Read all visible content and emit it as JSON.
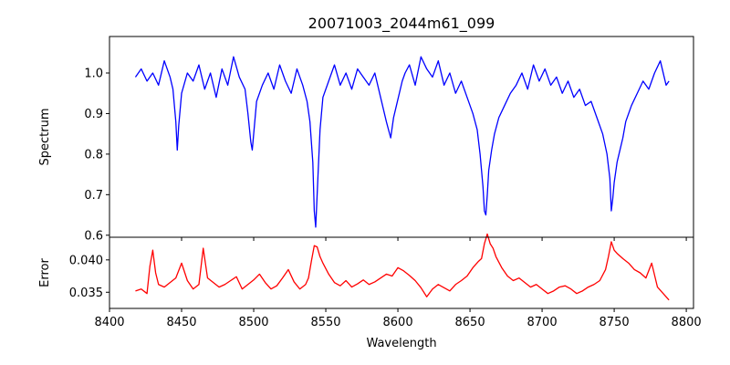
{
  "chart_data": [
    {
      "type": "line",
      "title": "20071003_2044m61_099",
      "xlabel": "",
      "ylabel": "Spectrum",
      "xlim": [
        8400,
        8805
      ],
      "ylim": [
        0.595,
        1.09
      ],
      "xticks": [
        8400,
        8450,
        8500,
        8550,
        8600,
        8650,
        8700,
        8750,
        8800
      ],
      "yticks": [
        0.6,
        0.7,
        0.8,
        0.9,
        1.0
      ],
      "ytick_labels": [
        "0.6",
        "0.7",
        "0.8",
        "0.9",
        "1.0"
      ],
      "line_color": "#0000ff",
      "series": [
        {
          "x": [
            8418,
            8422,
            8426,
            8430,
            8434,
            8438,
            8442,
            8444,
            8446,
            8447,
            8448,
            8450,
            8454,
            8458,
            8462,
            8466,
            8470,
            8474,
            8478,
            8482,
            8486,
            8490,
            8494,
            8496,
            8498,
            8499,
            8500,
            8502,
            8506,
            8510,
            8514,
            8518,
            8522,
            8526,
            8530,
            8534,
            8537,
            8539,
            8541,
            8542,
            8543,
            8544,
            8546,
            8548,
            8552,
            8556,
            8560,
            8564,
            8568,
            8572,
            8576,
            8580,
            8584,
            8588,
            8592,
            8595,
            8597,
            8599,
            8601,
            8603,
            8605,
            8608,
            8612,
            8616,
            8620,
            8624,
            8628,
            8632,
            8636,
            8640,
            8644,
            8648,
            8652,
            8655,
            8657,
            8659,
            8660,
            8661,
            8662,
            8663,
            8665,
            8667,
            8670,
            8674,
            8678,
            8682,
            8686,
            8690,
            8694,
            8698,
            8702,
            8706,
            8710,
            8714,
            8718,
            8722,
            8726,
            8730,
            8734,
            8738,
            8742,
            8745,
            8747,
            8748,
            8749,
            8750,
            8752,
            8754,
            8756,
            8758,
            8762,
            8766,
            8770,
            8774,
            8778,
            8782,
            8786,
            8788
          ],
          "y": [
            0.99,
            1.01,
            0.98,
            1.0,
            0.97,
            1.03,
            0.99,
            0.96,
            0.88,
            0.81,
            0.87,
            0.95,
            1.0,
            0.98,
            1.02,
            0.96,
            1.0,
            0.94,
            1.01,
            0.97,
            1.04,
            0.99,
            0.96,
            0.9,
            0.83,
            0.81,
            0.85,
            0.93,
            0.97,
            1.0,
            0.96,
            1.02,
            0.98,
            0.95,
            1.01,
            0.97,
            0.93,
            0.88,
            0.78,
            0.66,
            0.62,
            0.7,
            0.86,
            0.94,
            0.98,
            1.02,
            0.97,
            1.0,
            0.96,
            1.01,
            0.99,
            0.97,
            1.0,
            0.94,
            0.88,
            0.84,
            0.89,
            0.92,
            0.95,
            0.98,
            1.0,
            1.02,
            0.97,
            1.04,
            1.01,
            0.99,
            1.03,
            0.97,
            1.0,
            0.95,
            0.98,
            0.94,
            0.9,
            0.86,
            0.8,
            0.72,
            0.66,
            0.65,
            0.7,
            0.76,
            0.81,
            0.85,
            0.89,
            0.92,
            0.95,
            0.97,
            1.0,
            0.96,
            1.02,
            0.98,
            1.01,
            0.97,
            0.99,
            0.95,
            0.98,
            0.94,
            0.96,
            0.92,
            0.93,
            0.89,
            0.85,
            0.8,
            0.74,
            0.66,
            0.69,
            0.73,
            0.78,
            0.81,
            0.84,
            0.88,
            0.92,
            0.95,
            0.98,
            0.96,
            1.0,
            1.03,
            0.97,
            0.98
          ]
        }
      ]
    },
    {
      "type": "line",
      "title": "",
      "xlabel": "Wavelength",
      "ylabel": "Error",
      "xlim": [
        8400,
        8805
      ],
      "ylim": [
        0.0325,
        0.0435
      ],
      "xticks": [
        8400,
        8450,
        8500,
        8550,
        8600,
        8650,
        8700,
        8750,
        8800
      ],
      "xtick_labels": [
        "8400",
        "8450",
        "8500",
        "8550",
        "8600",
        "8650",
        "8700",
        "8750",
        "8800"
      ],
      "yticks": [
        0.035,
        0.04
      ],
      "ytick_labels": [
        "0.035",
        "0.040"
      ],
      "line_color": "#ff0000",
      "series": [
        {
          "x": [
            8418,
            8422,
            8426,
            8428,
            8430,
            8432,
            8434,
            8438,
            8442,
            8446,
            8450,
            8454,
            8458,
            8462,
            8465,
            8468,
            8472,
            8476,
            8480,
            8484,
            8488,
            8492,
            8496,
            8500,
            8504,
            8508,
            8512,
            8516,
            8520,
            8524,
            8528,
            8532,
            8536,
            8538,
            8540,
            8542,
            8544,
            8546,
            8548,
            8552,
            8556,
            8560,
            8564,
            8568,
            8572,
            8576,
            8580,
            8584,
            8588,
            8592,
            8596,
            8600,
            8604,
            8608,
            8612,
            8616,
            8620,
            8624,
            8628,
            8632,
            8636,
            8640,
            8644,
            8648,
            8652,
            8656,
            8658,
            8660,
            8662,
            8664,
            8666,
            8668,
            8672,
            8676,
            8680,
            8684,
            8688,
            8692,
            8696,
            8700,
            8704,
            8708,
            8712,
            8716,
            8720,
            8724,
            8728,
            8732,
            8736,
            8740,
            8744,
            8746,
            8748,
            8750,
            8752,
            8756,
            8760,
            8764,
            8768,
            8772,
            8776,
            8780,
            8784,
            8788
          ],
          "y": [
            0.0352,
            0.0355,
            0.0348,
            0.039,
            0.0415,
            0.038,
            0.0362,
            0.0358,
            0.0365,
            0.0372,
            0.0395,
            0.0368,
            0.0355,
            0.0362,
            0.0418,
            0.0372,
            0.0365,
            0.0358,
            0.0362,
            0.0368,
            0.0374,
            0.0355,
            0.0362,
            0.0369,
            0.0378,
            0.0365,
            0.0355,
            0.036,
            0.0372,
            0.0385,
            0.0366,
            0.0355,
            0.0362,
            0.0372,
            0.0398,
            0.0422,
            0.042,
            0.0405,
            0.0395,
            0.0378,
            0.0365,
            0.036,
            0.0368,
            0.0358,
            0.0363,
            0.0369,
            0.0362,
            0.0366,
            0.0372,
            0.0378,
            0.0375,
            0.0388,
            0.0383,
            0.0376,
            0.0368,
            0.0357,
            0.0343,
            0.0355,
            0.0362,
            0.0357,
            0.0352,
            0.0362,
            0.0368,
            0.0375,
            0.0388,
            0.0398,
            0.0402,
            0.0425,
            0.044,
            0.0425,
            0.0418,
            0.0405,
            0.0388,
            0.0375,
            0.0368,
            0.0372,
            0.0365,
            0.0358,
            0.0362,
            0.0355,
            0.0348,
            0.0352,
            0.0358,
            0.036,
            0.0355,
            0.0348,
            0.0352,
            0.0358,
            0.0362,
            0.0368,
            0.0385,
            0.0405,
            0.0428,
            0.0415,
            0.041,
            0.0402,
            0.0395,
            0.0385,
            0.038,
            0.0372,
            0.0395,
            0.0358,
            0.0348,
            0.0338
          ]
        }
      ]
    }
  ]
}
